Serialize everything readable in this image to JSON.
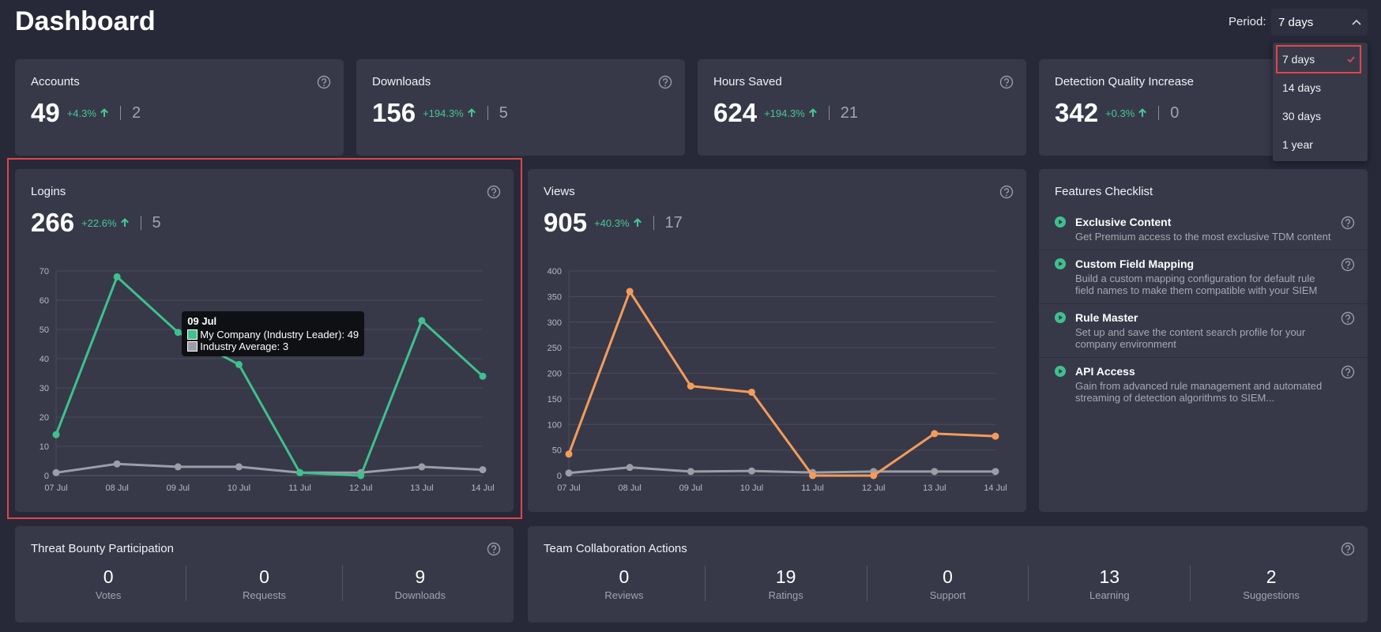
{
  "header": {
    "title": "Dashboard",
    "period_label": "Period:",
    "period_selected": "7 days"
  },
  "period_options": [
    "7 days",
    "14 days",
    "30 days",
    "1 year"
  ],
  "kpis": [
    {
      "name": "Accounts",
      "value": 49,
      "change": "+4.3%",
      "prev": 2
    },
    {
      "name": "Downloads",
      "value": 156,
      "change": "+194.3%",
      "prev": 5
    },
    {
      "name": "Hours Saved",
      "value": 624,
      "change": "+194.3%",
      "prev": 21
    },
    {
      "name": "Detection Quality Increase",
      "value": 342,
      "change": "+0.3%",
      "prev": 0
    }
  ],
  "chart_data": [
    {
      "type": "line",
      "title": "Logins",
      "value": 266,
      "change": "+22.6%",
      "prev": 5,
      "categories": [
        "07 Jul",
        "08 Jul",
        "09 Jul",
        "10 Jul",
        "11 Jul",
        "12 Jul",
        "13 Jul",
        "14 Jul"
      ],
      "series": [
        {
          "name": "Industry Average",
          "color": "#9c9da7",
          "values": [
            1,
            4,
            3,
            3,
            1,
            1,
            3,
            2
          ]
        },
        {
          "name": "My Company (Industry Leader)",
          "color": "#3fc08e",
          "values": [
            14,
            68,
            49,
            38,
            1,
            0,
            53,
            34
          ]
        }
      ],
      "ylim": [
        0,
        70
      ],
      "yticks": [
        0,
        10,
        20,
        30,
        40,
        50,
        60,
        70
      ],
      "grid": true,
      "tooltip_index": 2
    },
    {
      "type": "line",
      "title": "Views",
      "value": 905,
      "change": "+40.3%",
      "prev": 17,
      "categories": [
        "07 Jul",
        "08 Jul",
        "09 Jul",
        "10 Jul",
        "11 Jul",
        "12 Jul",
        "13 Jul",
        "14 Jul"
      ],
      "series": [
        {
          "name": "Industry Average",
          "color": "#9c9da7",
          "values": [
            5,
            16,
            8,
            9,
            6,
            8,
            8,
            8
          ]
        },
        {
          "name": "My Company (Industry Leader)",
          "color": "#f39c5a",
          "values": [
            42,
            360,
            175,
            163,
            0,
            0,
            82,
            77
          ]
        }
      ],
      "ylim": [
        0,
        400
      ],
      "yticks": [
        0,
        50,
        100,
        150,
        200,
        250,
        300,
        350,
        400
      ],
      "grid": true
    }
  ],
  "features": {
    "title": "Features Checklist",
    "items": [
      {
        "title": "Exclusive Content",
        "description": "Get Premium access to the most exclusive TDM content"
      },
      {
        "title": "Custom Field Mapping",
        "description": "Build a custom mapping configuration for default rule field names to make them compatible with your SIEM"
      },
      {
        "title": "Rule Master",
        "description": "Set up and save the content search profile for your company environment"
      },
      {
        "title": "API Access",
        "description": "Gain from advanced rule management and automated streaming of detection algorithms to SIEM..."
      }
    ]
  },
  "threat_bounty": {
    "title": "Threat Bounty Participation",
    "stats": [
      {
        "value": 0,
        "label": "Votes"
      },
      {
        "value": 0,
        "label": "Requests"
      },
      {
        "value": 9,
        "label": "Downloads"
      }
    ]
  },
  "team_collaboration": {
    "title": "Team Collaboration Actions",
    "stats": [
      {
        "value": 0,
        "label": "Reviews"
      },
      {
        "value": 19,
        "label": "Ratings"
      },
      {
        "value": 0,
        "label": "Support"
      },
      {
        "value": 13,
        "label": "Learning"
      },
      {
        "value": 2,
        "label": "Suggestions"
      }
    ]
  }
}
